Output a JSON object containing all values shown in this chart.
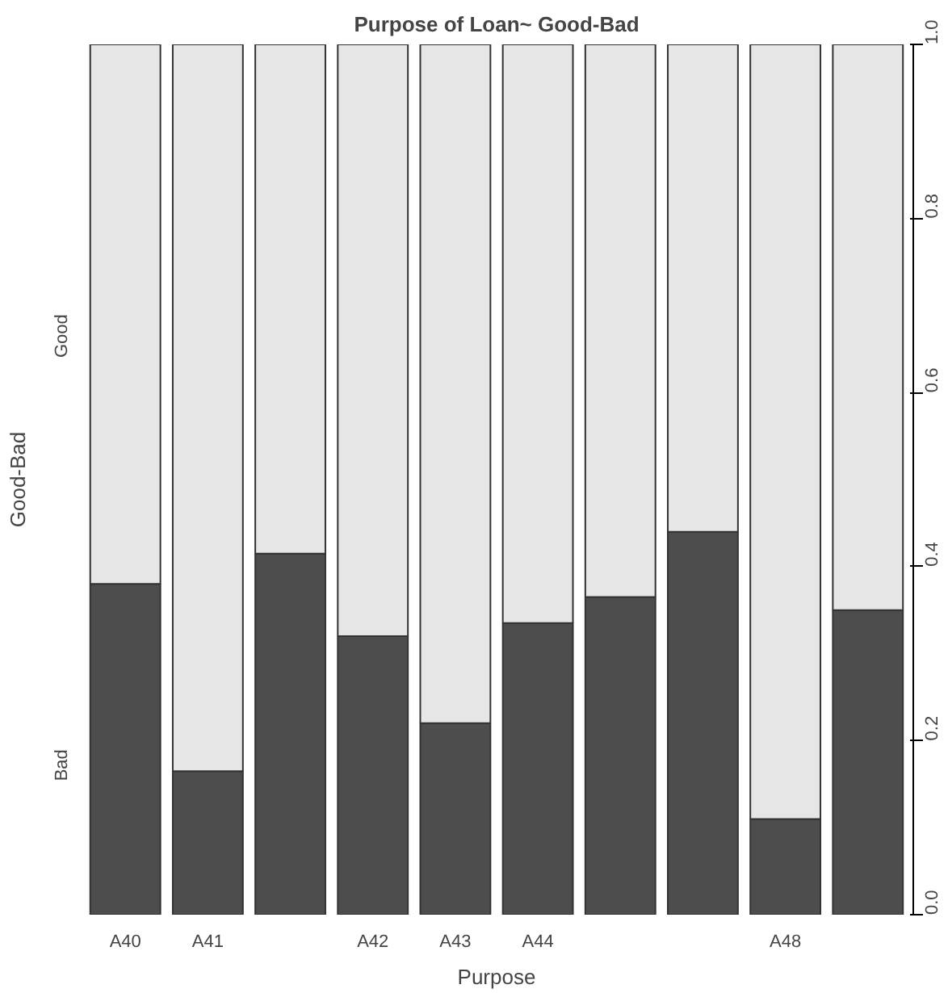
{
  "chart_data": {
    "type": "bar",
    "stacked": true,
    "title": "Purpose of Loan~ Good-Bad",
    "xlabel": "Purpose",
    "ylabel": "Good-Bad",
    "categories": [
      "A40",
      "A41",
      null,
      "A42",
      "A43",
      "A44",
      null,
      null,
      "A48",
      null
    ],
    "series": [
      {
        "name": "Bad",
        "color": "#4d4d4d",
        "values": [
          0.38,
          0.165,
          0.415,
          0.32,
          0.22,
          0.335,
          0.365,
          0.44,
          0.11,
          0.35
        ]
      },
      {
        "name": "Good",
        "color": "#e6e6e6",
        "values": [
          0.62,
          0.835,
          0.585,
          0.68,
          0.78,
          0.665,
          0.635,
          0.56,
          0.89,
          0.65
        ]
      }
    ],
    "ylim": [
      0,
      1
    ],
    "yticks": [
      {
        "value": 0,
        "label": "0.0"
      },
      0.2,
      0.4,
      0.6,
      0.8,
      {
        "value": 1,
        "label": "1.0"
      }
    ],
    "grid": false
  }
}
